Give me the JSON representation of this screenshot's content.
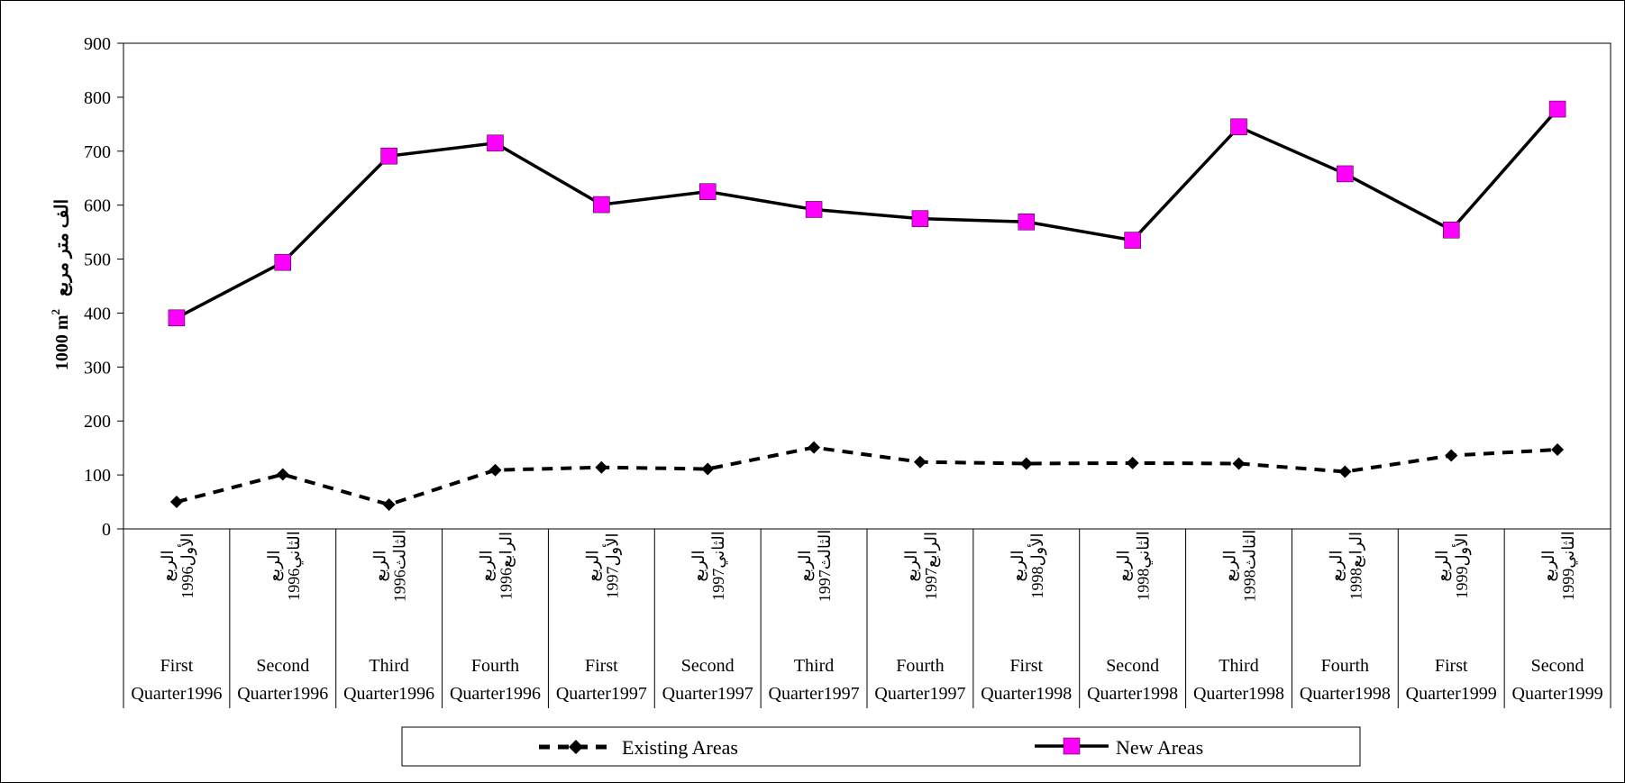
{
  "chart_data": {
    "type": "line",
    "ylabel": "1000 m",
    "ylabel_superscript": "2",
    "ylabel_arabic": "الف متر مربع",
    "ylim": [
      0,
      900
    ],
    "yticks": [
      0,
      100,
      200,
      300,
      400,
      500,
      600,
      700,
      800,
      900
    ],
    "grid": false,
    "legend_position": "bottom",
    "categories": [
      {
        "en1": "First",
        "en2": "Quarter1996",
        "ar1": "الربع",
        "ar2": "الأول1996"
      },
      {
        "en1": "Second",
        "en2": "Quarter1996",
        "ar1": "الربع",
        "ar2": "الثاني1996"
      },
      {
        "en1": "Third",
        "en2": "Quarter1996",
        "ar1": "الربع",
        "ar2": "الثالث1996"
      },
      {
        "en1": "Fourth",
        "en2": "Quarter1996",
        "ar1": "الربع",
        "ar2": "الرابع1996"
      },
      {
        "en1": "First",
        "en2": "Quarter1997",
        "ar1": "الربع",
        "ar2": "الأول1997"
      },
      {
        "en1": "Second",
        "en2": "Quarter1997",
        "ar1": "الربع",
        "ar2": "الثاني1997"
      },
      {
        "en1": "Third",
        "en2": "Quarter1997",
        "ar1": "الربع",
        "ar2": "الثالث1997"
      },
      {
        "en1": "Fourth",
        "en2": "Quarter1997",
        "ar1": "الربع",
        "ar2": "الرابع1997"
      },
      {
        "en1": "First",
        "en2": "Quarter1998",
        "ar1": "الربع",
        "ar2": "الأول1998"
      },
      {
        "en1": "Second",
        "en2": "Quarter1998",
        "ar1": "الربع",
        "ar2": "الثاني1998"
      },
      {
        "en1": "Third",
        "en2": "Quarter1998",
        "ar1": "الربع",
        "ar2": "الثالث1998"
      },
      {
        "en1": "Fourth",
        "en2": "Quarter1998",
        "ar1": "الربع",
        "ar2": "الرابع1998"
      },
      {
        "en1": "First",
        "en2": "Quarter1999",
        "ar1": "الربع",
        "ar2": "الأول1999"
      },
      {
        "en1": "Second",
        "en2": "Quarter1999",
        "ar1": "الربع",
        "ar2": "الثاني1999"
      }
    ],
    "series": [
      {
        "name": "Existing Areas",
        "marker": "diamond",
        "line_style": "dashed",
        "color": "#000000",
        "values": [
          50,
          101,
          45,
          109,
          114,
          111,
          151,
          124,
          121,
          122,
          121,
          106,
          136,
          147
        ]
      },
      {
        "name": "New Areas",
        "marker": "square",
        "line_style": "solid",
        "color": "#000000",
        "marker_color": "#ff00ff",
        "values": [
          391,
          494,
          691,
          715,
          601,
          625,
          592,
          575,
          569,
          535,
          745,
          658,
          554,
          778
        ]
      }
    ]
  }
}
